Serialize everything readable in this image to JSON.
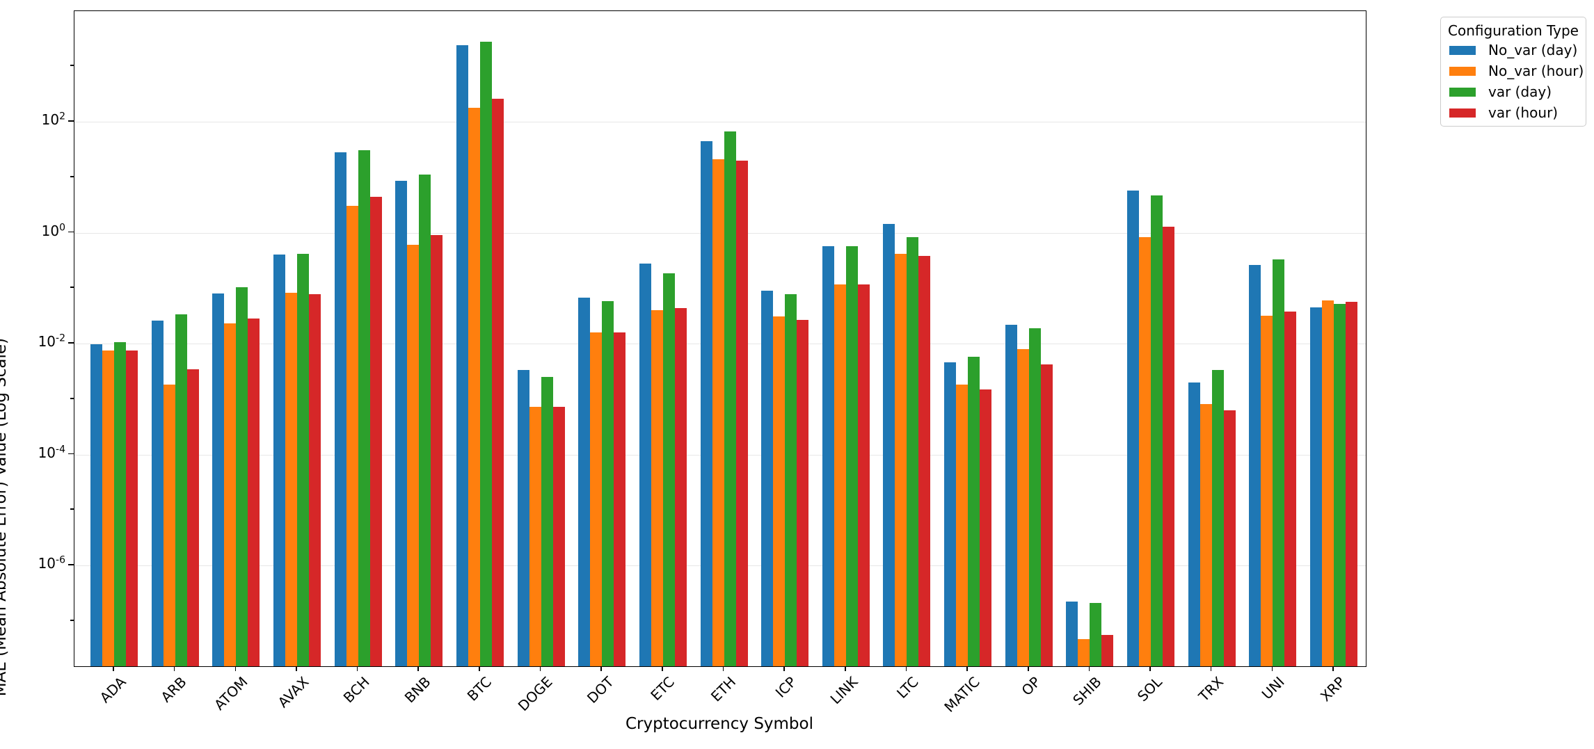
{
  "figure": {
    "xlabel": "Cryptocurrency Symbol",
    "ylabel": "MAE (Mean Absolute Error) Value (Log Scale)",
    "legend_title": "Configuration Type"
  },
  "chart_data": {
    "type": "bar",
    "title": "",
    "xlabel": "Cryptocurrency Symbol",
    "ylabel": "MAE (Mean Absolute Error) Value (Log Scale)",
    "yscale": "log",
    "grid": true,
    "gridline_color": "#e7e7e7",
    "ylim": [
      1.5e-08,
      11000
    ],
    "ytick_labeled_exponents": [
      2,
      0,
      -2,
      -4,
      -6
    ],
    "ytick_unlabeled_exponents": [
      3,
      1,
      -1,
      -3,
      -5,
      -7
    ],
    "legend_position": "outside upper right",
    "legend_title": "Configuration Type",
    "categories": [
      "ADA",
      "ARB",
      "ATOM",
      "AVAX",
      "BCH",
      "BNB",
      "BTC",
      "DOGE",
      "DOT",
      "ETC",
      "ETH",
      "ICP",
      "LINK",
      "LTC",
      "MATIC",
      "OP",
      "SHIB",
      "SOL",
      "TRX",
      "UNI",
      "XRP"
    ],
    "series": [
      {
        "name": "No_var (day)",
        "color": "#1f77b4",
        "values": [
          0.0097,
          0.026,
          0.08,
          0.4,
          28,
          8.6,
          2400,
          0.0033,
          0.067,
          0.28,
          45,
          0.09,
          0.57,
          1.45,
          0.0046,
          0.022,
          2.2e-07,
          5.7,
          0.002,
          0.26,
          0.045
        ]
      },
      {
        "name": "No_var (hour)",
        "color": "#ff7f0e",
        "values": [
          0.0075,
          0.0018,
          0.023,
          0.082,
          3.0,
          0.6,
          180,
          0.00072,
          0.016,
          0.04,
          21,
          0.031,
          0.116,
          0.42,
          0.0018,
          0.0079,
          4.7e-08,
          0.83,
          0.00081,
          0.032,
          0.06
        ]
      },
      {
        "name": "var (day)",
        "color": "#2ca02c",
        "values": [
          0.0105,
          0.034,
          0.105,
          0.41,
          31,
          11,
          2800,
          0.0025,
          0.058,
          0.185,
          67,
          0.078,
          0.57,
          0.83,
          0.0058,
          0.019,
          2.1e-07,
          4.7,
          0.0033,
          0.33,
          0.052
        ]
      },
      {
        "name": "var (hour)",
        "color": "#d62728",
        "values": [
          0.0074,
          0.0034,
          0.028,
          0.078,
          4.4,
          0.9,
          260,
          0.00073,
          0.0157,
          0.044,
          20,
          0.027,
          0.118,
          0.38,
          0.0015,
          0.0042,
          5.6e-08,
          1.26,
          0.00063,
          0.038,
          0.056
        ]
      }
    ]
  }
}
